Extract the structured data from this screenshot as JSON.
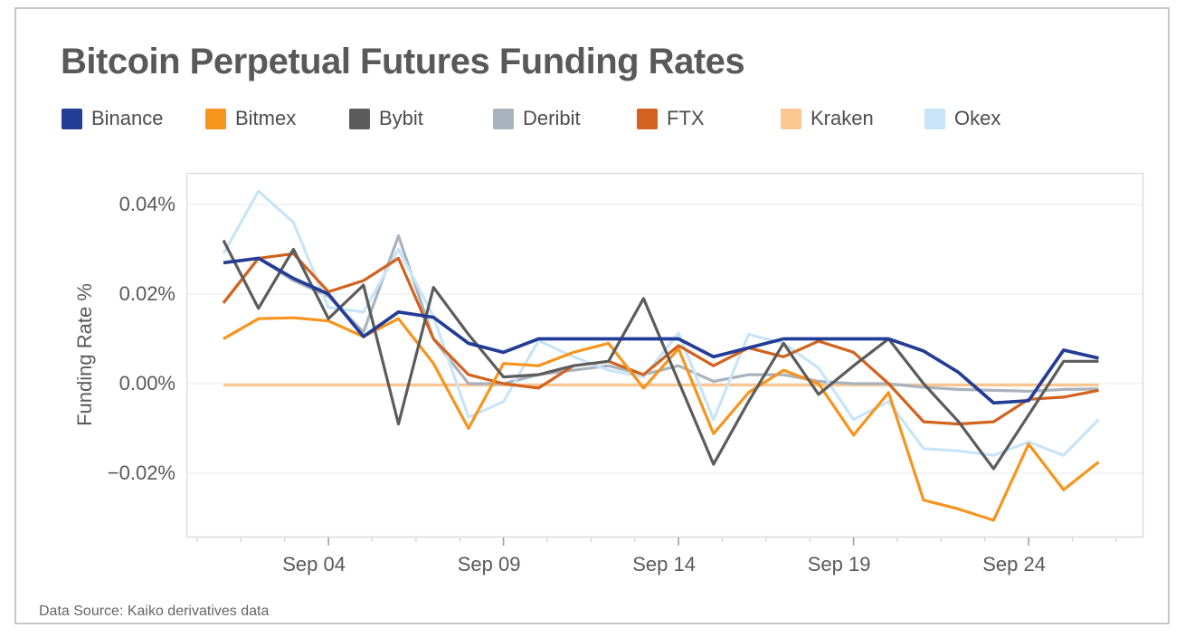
{
  "page": {
    "title": "Bitcoin Perpetual Futures Funding Rates",
    "source_note": "Data Source: Kaiko derivatives data"
  },
  "chart_data": {
    "type": "line",
    "title": "Bitcoin Perpetual Futures Funding Rates",
    "xlabel": "",
    "ylabel": "Funding Rate %",
    "legend_position": "top",
    "grid": "horizontal",
    "x": [
      "Sep 01",
      "Sep 02",
      "Sep 03",
      "Sep 04",
      "Sep 05",
      "Sep 06",
      "Sep 07",
      "Sep 08",
      "Sep 09",
      "Sep 10",
      "Sep 11",
      "Sep 12",
      "Sep 13",
      "Sep 14",
      "Sep 15",
      "Sep 16",
      "Sep 17",
      "Sep 18",
      "Sep 19",
      "Sep 20",
      "Sep 21",
      "Sep 22",
      "Sep 23",
      "Sep 24",
      "Sep 25",
      "Sep 26"
    ],
    "x_tick_labels": [
      "Sep 04",
      "Sep 09",
      "Sep 14",
      "Sep 19",
      "Sep 24"
    ],
    "x_major_tick_days": [
      4,
      9,
      14,
      19,
      24
    ],
    "y_tick_labels": [
      "0.04%",
      "0.02%",
      "0.00%",
      "−0.02%"
    ],
    "y_ticks_pct": [
      0.04,
      0.02,
      0.0,
      -0.02
    ],
    "ylim_pct": [
      -0.0343,
      0.0471
    ],
    "series": [
      {
        "name": "Binance",
        "color": "#233C96",
        "values_pct": [
          0.027,
          0.028,
          0.0235,
          0.02,
          0.0105,
          0.016,
          0.0148,
          0.009,
          0.007,
          0.01,
          0.01,
          0.01,
          0.01,
          0.01,
          0.006,
          0.008,
          0.01,
          0.01,
          0.01,
          0.01,
          0.0073,
          0.0025,
          -0.0043,
          -0.0038,
          0.0075,
          0.0057
        ]
      },
      {
        "name": "Bitmex",
        "color": "#F7941D",
        "values_pct": [
          0.01,
          0.0145,
          0.0147,
          0.014,
          0.0105,
          0.0145,
          0.0045,
          -0.01,
          0.0045,
          0.004,
          0.007,
          0.009,
          -0.001,
          0.0078,
          -0.0112,
          -0.002,
          0.003,
          0.0,
          -0.0115,
          -0.002,
          -0.026,
          -0.028,
          -0.0305,
          -0.0135,
          -0.0237,
          -0.0175
        ]
      },
      {
        "name": "Bybit",
        "color": "#5C5C5C",
        "values_pct": [
          0.032,
          0.0168,
          0.03,
          0.0145,
          0.022,
          -0.009,
          0.0215,
          0.011,
          0.0015,
          0.002,
          0.004,
          0.005,
          0.019,
          0.0005,
          -0.018,
          -0.004,
          0.009,
          -0.0024,
          0.004,
          0.01,
          0.0,
          -0.0085,
          -0.019,
          -0.007,
          0.005,
          0.005
        ]
      },
      {
        "name": "Deribit",
        "color": "#A9B3BD",
        "values_pct": [
          0.018,
          0.028,
          0.023,
          0.0195,
          0.0115,
          0.033,
          0.01,
          0.0,
          0.0,
          0.002,
          0.003,
          0.004,
          0.002,
          0.004,
          0.0005,
          0.002,
          0.002,
          0.0005,
          0.0,
          0.0,
          -0.0008,
          -0.0013,
          -0.0015,
          -0.0017,
          -0.0013,
          -0.0012
        ]
      },
      {
        "name": "FTX",
        "color": "#D2621D",
        "values_pct": [
          0.018,
          0.028,
          0.029,
          0.0205,
          0.023,
          0.028,
          0.01,
          0.002,
          0.0,
          -0.001,
          0.004,
          0.005,
          0.002,
          0.0085,
          0.004,
          0.008,
          0.006,
          0.0095,
          0.007,
          0.0,
          -0.0085,
          -0.009,
          -0.0085,
          -0.0035,
          -0.003,
          -0.0015
        ]
      },
      {
        "name": "Kraken",
        "color": "#FAC793",
        "values_pct": [
          -0.0003,
          -0.0003,
          -0.0003,
          -0.0003,
          -0.0003,
          -0.0003,
          -0.0003,
          -0.0003,
          -0.0003,
          -0.0003,
          -0.0003,
          -0.0003,
          -0.0003,
          -0.0003,
          -0.0003,
          -0.0003,
          -0.0003,
          -0.0003,
          -0.0003,
          -0.0003,
          -0.0003,
          -0.0003,
          -0.0003,
          -0.0003,
          -0.0003,
          -0.0003
        ]
      },
      {
        "name": "Okex",
        "color": "#C8E4F8",
        "values_pct": [
          0.029,
          0.043,
          0.036,
          0.017,
          0.016,
          0.03,
          0.015,
          -0.0075,
          -0.004,
          0.0096,
          0.006,
          0.003,
          0.0015,
          0.0113,
          -0.008,
          0.011,
          0.009,
          0.0035,
          -0.008,
          -0.004,
          -0.0145,
          -0.015,
          -0.016,
          -0.013,
          -0.016,
          -0.008
        ]
      }
    ]
  }
}
